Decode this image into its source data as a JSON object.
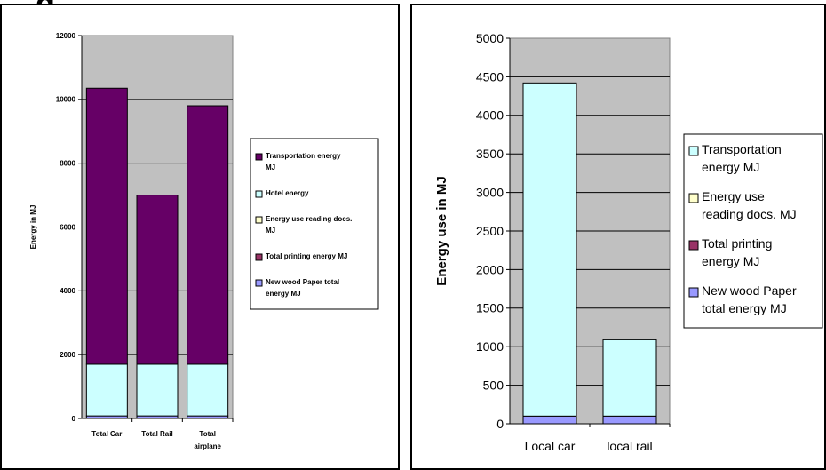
{
  "heading_fragment": "g",
  "chart_data": [
    {
      "type": "bar",
      "stacked": true,
      "title": "",
      "xlabel": "",
      "ylabel": "Energy in MJ",
      "ylim": [
        0,
        12000
      ],
      "yticks": [
        "0",
        "2000",
        "4000",
        "6000",
        "8000",
        "10000",
        "12000"
      ],
      "categories": [
        "Total Car",
        "Total Rail",
        "Total airplane"
      ],
      "series": [
        {
          "name": "New wood Paper total energy MJ",
          "color": "#9999ff",
          "values": [
            80,
            80,
            80
          ]
        },
        {
          "name": "Total printing energy MJ",
          "color": "#993366",
          "values": [
            0,
            0,
            0
          ]
        },
        {
          "name": "Energy use reading docs. MJ",
          "color": "#ffffcc",
          "values": [
            0,
            0,
            0
          ]
        },
        {
          "name": "Hotel energy",
          "color": "#ccffff",
          "values": [
            1620,
            1620,
            1620
          ]
        },
        {
          "name": "Transportation energy MJ",
          "color": "#660066",
          "values": [
            8650,
            5300,
            8100
          ]
        }
      ],
      "legend": {
        "position": "right",
        "entries": [
          {
            "label_lines": [
              "Transportation energy",
              "MJ"
            ],
            "color": "#660066"
          },
          {
            "label_lines": [
              "Hotel energy"
            ],
            "color": "#ccffff"
          },
          {
            "label_lines": [
              "Energy use reading docs.",
              "MJ"
            ],
            "color": "#ffffcc"
          },
          {
            "label_lines": [
              "Total printing energy MJ"
            ],
            "color": "#993366"
          },
          {
            "label_lines": [
              "New wood Paper total",
              "energy MJ"
            ],
            "color": "#9999ff"
          }
        ]
      },
      "category_label_lines": [
        [
          "Total Car"
        ],
        [
          "Total Rail"
        ],
        [
          "Total",
          "airplane"
        ]
      ],
      "plot_background": "#c0c0c0",
      "grid": true
    },
    {
      "type": "bar",
      "stacked": true,
      "title": "",
      "xlabel": "",
      "ylabel": "Energy use in MJ",
      "ylim": [
        0,
        5000
      ],
      "yticks": [
        "0",
        "500",
        "1000",
        "1500",
        "2000",
        "2500",
        "3000",
        "3500",
        "4000",
        "4500",
        "5000"
      ],
      "categories": [
        "Local car",
        "local rail"
      ],
      "series": [
        {
          "name": "New wood Paper total energy MJ",
          "color": "#9999ff",
          "values": [
            100,
            100
          ]
        },
        {
          "name": "Total printing energy MJ",
          "color": "#993366",
          "values": [
            0,
            0
          ]
        },
        {
          "name": "Energy use reading docs. MJ",
          "color": "#ffffcc",
          "values": [
            0,
            0
          ]
        },
        {
          "name": "Transportation energy MJ",
          "color": "#ccffff",
          "values": [
            4320,
            990
          ]
        }
      ],
      "legend": {
        "position": "right",
        "entries": [
          {
            "label_lines": [
              "Transportation",
              "energy MJ"
            ],
            "color": "#ccffff"
          },
          {
            "label_lines": [
              "Energy use",
              "reading docs. MJ"
            ],
            "color": "#ffffcc"
          },
          {
            "label_lines": [
              "Total printing",
              "energy MJ"
            ],
            "color": "#993366"
          },
          {
            "label_lines": [
              "New wood Paper",
              "total energy MJ"
            ],
            "color": "#9999ff"
          }
        ]
      },
      "category_label_lines": [
        [
          "Local car"
        ],
        [
          "local rail"
        ]
      ],
      "plot_background": "#c0c0c0",
      "grid": true
    }
  ]
}
